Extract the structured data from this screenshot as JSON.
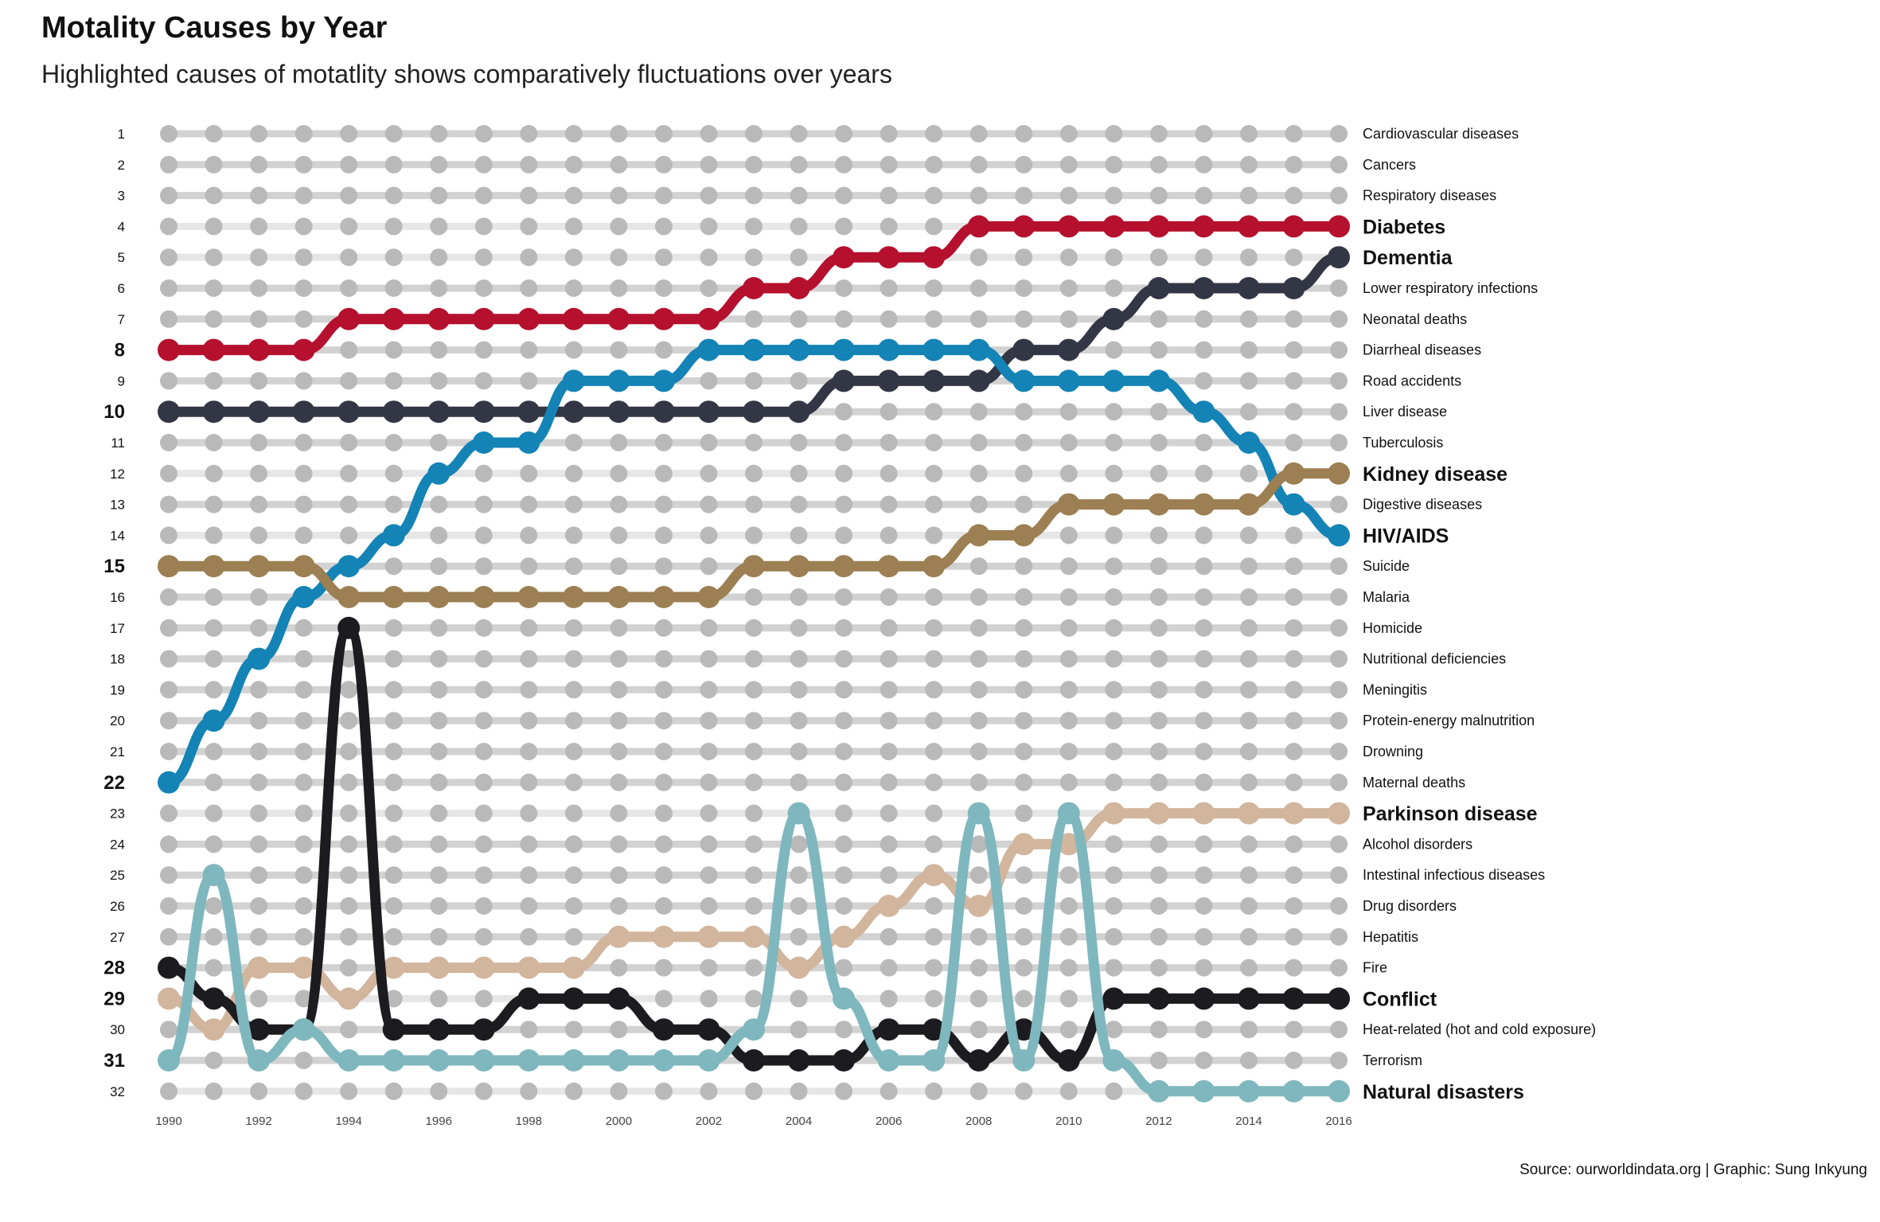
{
  "title": "Motality Causes by Year",
  "subtitle": "Highlighted causes of motatlity shows comparatively fluctuations over years",
  "caption": "Source: ourworldindata.org | Graphic: Sung Inkyung",
  "colors": {
    "background_line": "#d2d2d2",
    "background_dot": "#b9b9b9",
    "Diabetes": "#b5102e",
    "Dementia": "#333644",
    "Kidney disease": "#9c7f52",
    "HIV/AIDS": "#1483b5",
    "Parkinson disease": "#d2b59d",
    "Conflict": "#1c1c20",
    "Natural disasters": "#7fb7be"
  },
  "chart_data": {
    "type": "bump",
    "years": [
      1990,
      1991,
      1992,
      1993,
      1994,
      1995,
      1996,
      1997,
      1998,
      1999,
      2000,
      2001,
      2002,
      2003,
      2004,
      2005,
      2006,
      2007,
      2008,
      2009,
      2010,
      2011,
      2012,
      2013,
      2014,
      2015,
      2016
    ],
    "x_tick_labels": [
      "1990",
      "1992",
      "1994",
      "1996",
      "1998",
      "2000",
      "2002",
      "2004",
      "2006",
      "2008",
      "2010",
      "2012",
      "2014",
      "2016"
    ],
    "ranks": [
      1,
      2,
      3,
      4,
      5,
      6,
      7,
      8,
      9,
      10,
      11,
      12,
      13,
      14,
      15,
      16,
      17,
      18,
      19,
      20,
      21,
      22,
      23,
      24,
      25,
      26,
      27,
      28,
      29,
      30,
      31,
      32
    ],
    "bold_start_ranks": [
      8,
      10,
      15,
      22,
      28,
      29,
      31
    ],
    "ylim": [
      1,
      32
    ],
    "y_reversed": true,
    "grid": false,
    "legend": "none (direct labels at 2016)",
    "end_labels": [
      "Cardiovascular diseases",
      "Cancers",
      "Respiratory diseases",
      "Diabetes",
      "Dementia",
      "Lower respiratory infections",
      "Neonatal deaths",
      "Diarrheal diseases",
      "Road accidents",
      "Liver disease",
      "Tuberculosis",
      "Kidney disease",
      "Digestive diseases",
      "HIV/AIDS",
      "Suicide",
      "Malaria",
      "Homicide",
      "Nutritional deficiencies",
      "Meningitis",
      "Protein-energy malnutrition",
      "Drowning",
      "Maternal deaths",
      "Parkinson disease",
      "Alcohol disorders",
      "Intestinal infectious diseases",
      "Drug disorders",
      "Hepatitis",
      "Fire",
      "Conflict",
      "Heat-related (hot and cold exposure)",
      "Terrorism",
      "Natural disasters"
    ],
    "series": [
      {
        "name": "Diabetes",
        "values": [
          8,
          8,
          8,
          8,
          7,
          7,
          7,
          7,
          7,
          7,
          7,
          7,
          7,
          6,
          6,
          5,
          5,
          5,
          4,
          4,
          4,
          4,
          4,
          4,
          4,
          4,
          4
        ]
      },
      {
        "name": "Dementia",
        "values": [
          10,
          10,
          10,
          10,
          10,
          10,
          10,
          10,
          10,
          10,
          10,
          10,
          10,
          10,
          10,
          9,
          9,
          9,
          9,
          8,
          8,
          7,
          6,
          6,
          6,
          6,
          5
        ]
      },
      {
        "name": "HIV/AIDS",
        "values": [
          22,
          20,
          18,
          16,
          15,
          14,
          12,
          11,
          11,
          9,
          9,
          9,
          8,
          8,
          8,
          8,
          8,
          8,
          8,
          9,
          9,
          9,
          9,
          10,
          11,
          13,
          14
        ]
      },
      {
        "name": "Kidney disease",
        "values": [
          15,
          15,
          15,
          15,
          16,
          16,
          16,
          16,
          16,
          16,
          16,
          16,
          16,
          15,
          15,
          15,
          15,
          15,
          14,
          14,
          13,
          13,
          13,
          13,
          13,
          12,
          12
        ]
      },
      {
        "name": "Parkinson disease",
        "values": [
          29,
          30,
          28,
          28,
          29,
          28,
          28,
          28,
          28,
          28,
          27,
          27,
          27,
          27,
          28,
          27,
          26,
          25,
          26,
          24,
          24,
          23,
          23,
          23,
          23,
          23,
          23
        ]
      },
      {
        "name": "Conflict",
        "values": [
          28,
          29,
          30,
          30,
          17,
          30,
          30,
          30,
          29,
          29,
          29,
          30,
          30,
          31,
          31,
          31,
          30,
          30,
          31,
          30,
          31,
          29,
          29,
          29,
          29,
          29,
          29
        ]
      },
      {
        "name": "Natural disasters",
        "values": [
          31,
          25,
          31,
          30,
          31,
          31,
          31,
          31,
          31,
          31,
          31,
          31,
          31,
          30,
          23,
          29,
          31,
          31,
          23,
          31,
          23,
          31,
          32,
          32,
          32,
          32,
          32
        ]
      }
    ]
  }
}
